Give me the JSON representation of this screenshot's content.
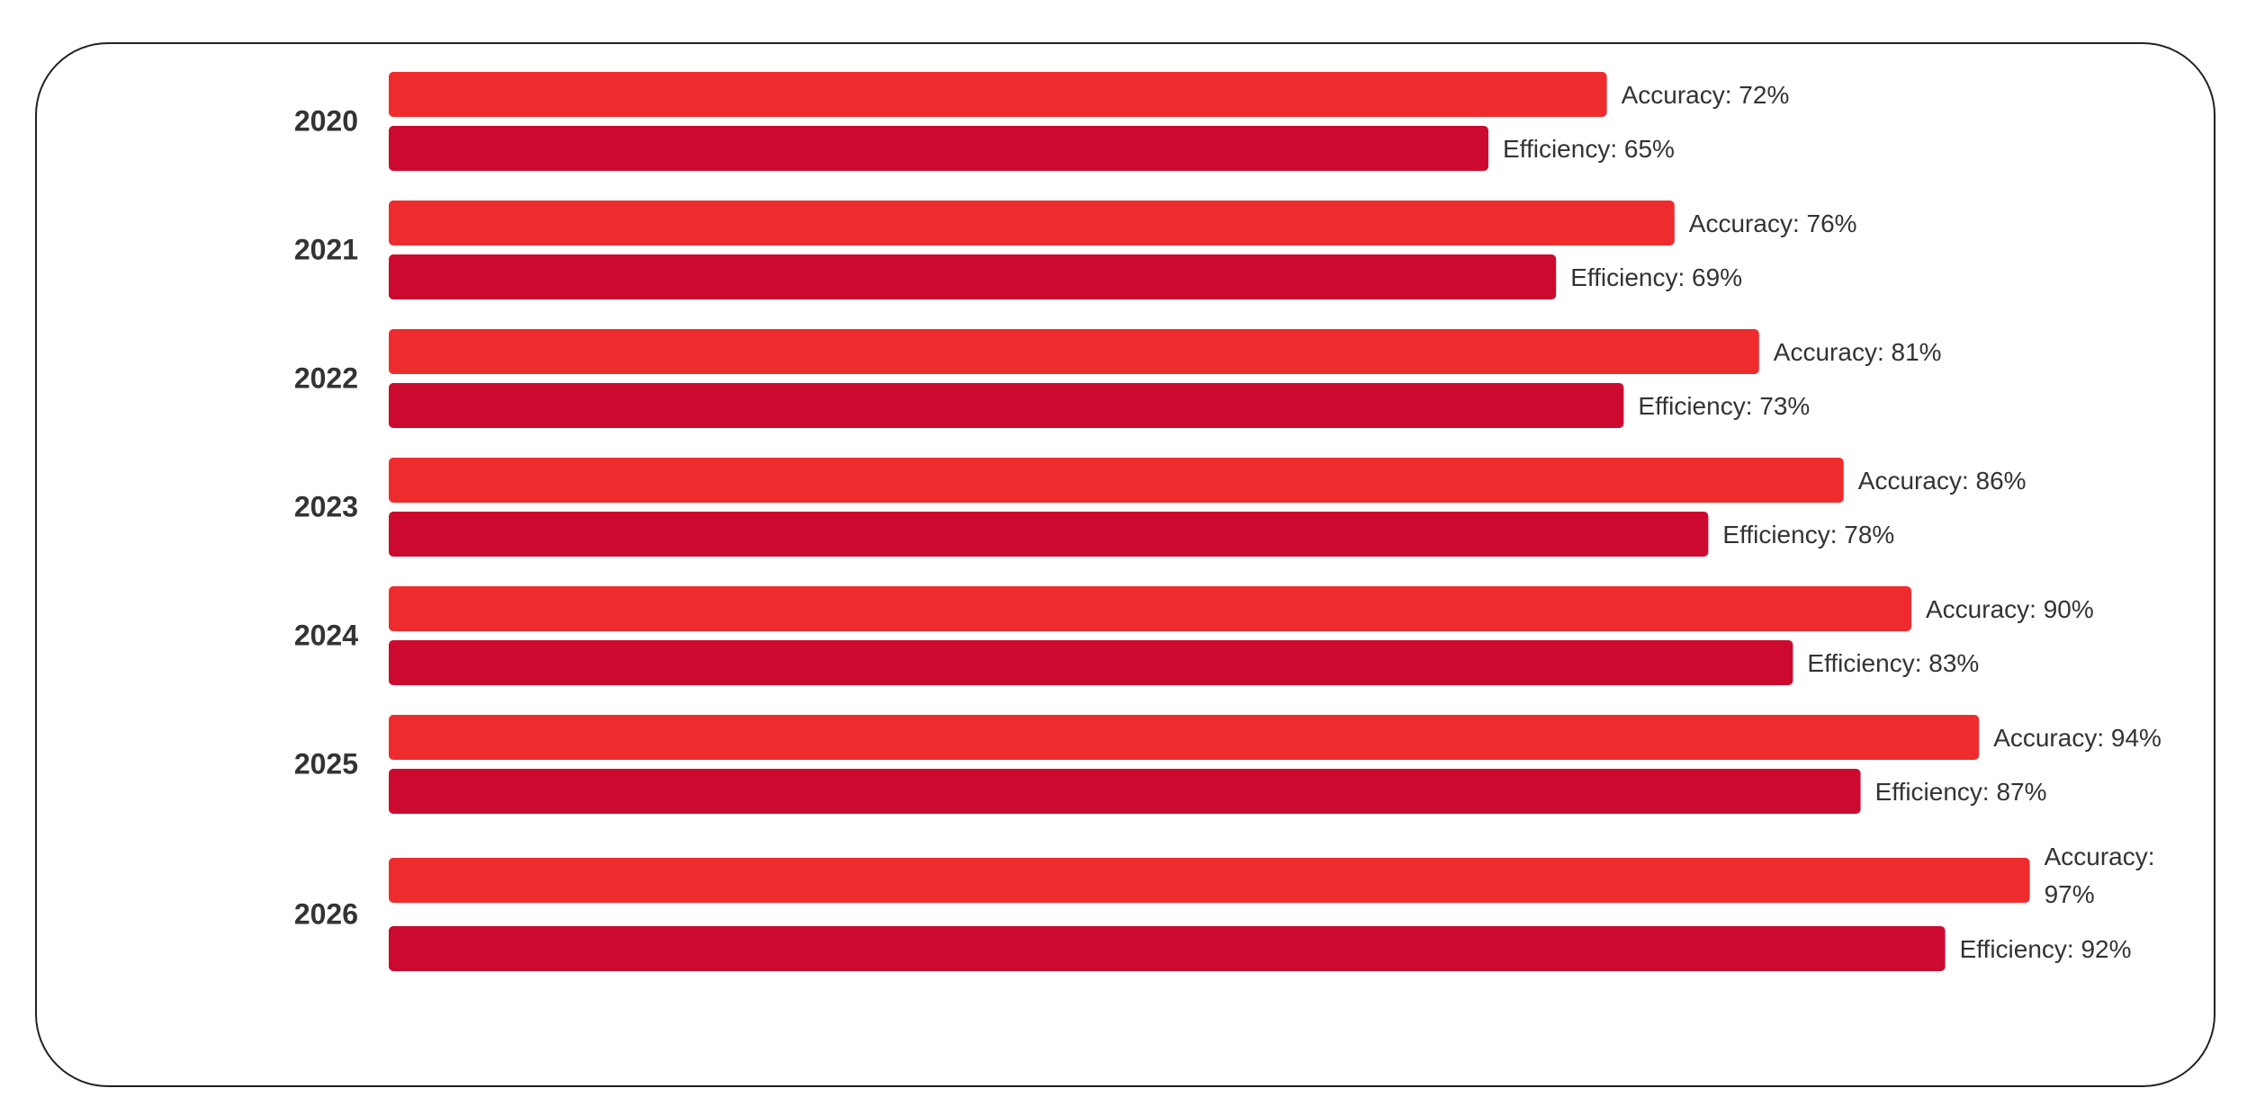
{
  "chart_data": {
    "type": "hbar",
    "categories": [
      "2020",
      "2021",
      "2022",
      "2023",
      "2024",
      "2025",
      "2026"
    ],
    "series": [
      {
        "color": "#ee2c2e",
        "values": [
          72,
          76,
          81,
          86,
          90,
          94,
          97
        ],
        "value_labels": [
          "Accuracy: 72%",
          "Accuracy: 76%",
          "Accuracy: 81%",
          "Accuracy: 86%",
          "Accuracy: 90%",
          "Accuracy: 94%",
          "Accuracy: 97%"
        ]
      },
      {
        "color": "#cc0a2f",
        "values": [
          65,
          69,
          73,
          78,
          83,
          87,
          92
        ],
        "value_labels": [
          "Efficiency: 65%",
          "Efficiency: 69%",
          "Efficiency: 73%",
          "Efficiency: 78%",
          "Efficiency: 83%",
          "Efficiency: 87%",
          "Efficiency: 92%"
        ]
      }
    ]
  }
}
